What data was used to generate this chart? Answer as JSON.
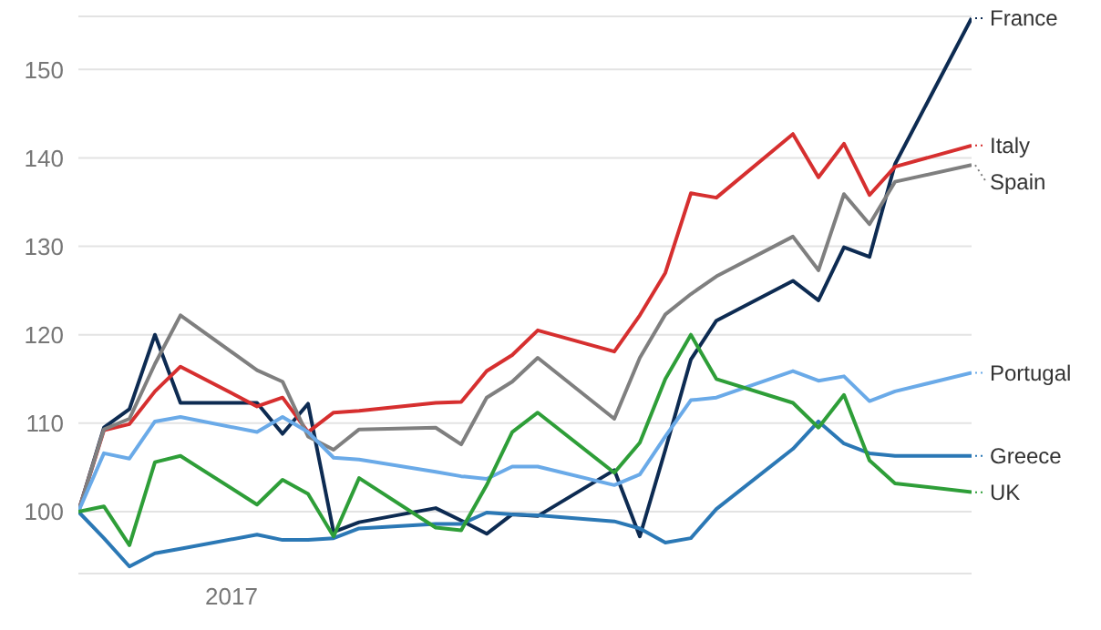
{
  "chart_data": {
    "type": "line",
    "categories": [
      null,
      null,
      null,
      null,
      null,
      null,
      "2017",
      null,
      null,
      null,
      null,
      null,
      null,
      null,
      null,
      null,
      null,
      null,
      null,
      null,
      null,
      null,
      null,
      null,
      null,
      null,
      null,
      null,
      null,
      null,
      null,
      null,
      null,
      null,
      null,
      null
    ],
    "ylim": [
      93,
      156
    ],
    "yticks": [
      100,
      110,
      120,
      130,
      140,
      150
    ],
    "grid": "y",
    "legend": "right",
    "series": [
      {
        "name": "France",
        "color": "#0d2b52",
        "values": [
          100,
          109.5,
          111.6,
          120,
          112.3,
          null,
          null,
          112.3,
          108.8,
          112.2,
          97.7,
          98.8,
          null,
          null,
          100.4,
          99,
          97.5,
          99.7,
          99.5,
          null,
          null,
          104.7,
          97.2,
          107,
          117.2,
          121.6,
          null,
          null,
          126.1,
          123.9,
          129.9,
          128.8,
          139.3,
          null,
          null,
          155.8
        ]
      },
      {
        "name": "Italy",
        "color": "#d62f2f",
        "values": [
          100,
          109.2,
          109.9,
          113.6,
          116.4,
          null,
          null,
          111.9,
          112.9,
          109,
          111.2,
          111.4,
          null,
          null,
          112.3,
          112.4,
          115.9,
          117.7,
          120.5,
          null,
          null,
          118.1,
          122.2,
          127,
          136,
          135.5,
          null,
          null,
          142.7,
          137.8,
          141.6,
          135.8,
          139,
          null,
          null,
          141.4
        ]
      },
      {
        "name": "Spain",
        "color": "#7f7f7f",
        "values": [
          100,
          109.3,
          110.5,
          116.7,
          122.2,
          null,
          null,
          116,
          114.7,
          108.5,
          107,
          109.3,
          null,
          null,
          109.5,
          107.6,
          112.9,
          114.7,
          117.4,
          null,
          null,
          110.5,
          117.4,
          122.3,
          124.6,
          126.6,
          null,
          null,
          131.1,
          127.3,
          135.9,
          132.5,
          137.3,
          null,
          null,
          139.2
        ]
      },
      {
        "name": "Portugal",
        "color": "#6aaae8",
        "values": [
          100,
          106.6,
          106,
          110.2,
          110.7,
          null,
          null,
          109,
          110.7,
          109,
          106.1,
          105.9,
          null,
          null,
          104.5,
          104,
          103.7,
          105.1,
          105.1,
          null,
          null,
          103,
          104.2,
          108.5,
          112.6,
          112.9,
          null,
          null,
          115.9,
          114.8,
          115.3,
          112.5,
          113.6,
          null,
          null,
          115.7
        ]
      },
      {
        "name": "Greece",
        "color": "#2b78b5",
        "values": [
          100,
          97,
          93.8,
          95.3,
          95.8,
          null,
          null,
          97.4,
          96.8,
          96.8,
          97,
          98.1,
          null,
          null,
          98.6,
          98.6,
          99.9,
          99.7,
          99.6,
          null,
          null,
          98.9,
          98.1,
          96.5,
          97,
          100.3,
          null,
          null,
          107.1,
          110.2,
          107.7,
          106.6,
          106.3,
          null,
          null,
          106.3
        ]
      },
      {
        "name": "UK",
        "color": "#2e9e38",
        "values": [
          100,
          100.6,
          96.2,
          105.6,
          106.3,
          null,
          null,
          100.8,
          103.6,
          102,
          97.2,
          103.8,
          null,
          null,
          98.2,
          97.9,
          103,
          109,
          111.2,
          null,
          null,
          104.4,
          107.8,
          115,
          120,
          115,
          null,
          null,
          112.3,
          109.5,
          113.2,
          105.8,
          103.2,
          null,
          null,
          102.2
        ]
      }
    ]
  }
}
